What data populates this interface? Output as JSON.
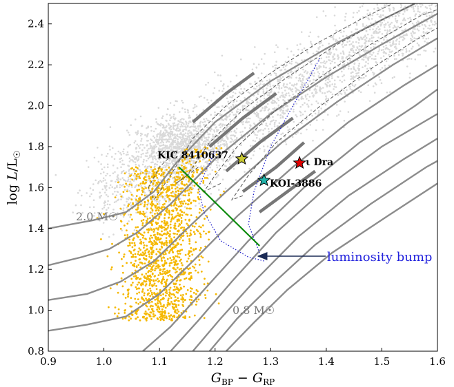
{
  "chart_data": {
    "type": "scatter",
    "xlabel": "G_BP − G_RP",
    "ylabel": "log L/L☉",
    "xlim": [
      0.9,
      1.6
    ],
    "ylim": [
      0.8,
      2.5
    ],
    "xticks": [
      "0.9",
      "1.0",
      "1.1",
      "1.2",
      "1.3",
      "1.4",
      "1.5",
      "1.6"
    ],
    "yticks": [
      "0.8",
      "1.0",
      "1.2",
      "1.4",
      "1.6",
      "1.8",
      "2.0",
      "2.2",
      "2.4"
    ],
    "grid": false,
    "colors": {
      "field_stars": "#d9d9d9",
      "rgb_stars": "#f5b800",
      "tracks": "#8c8c8c",
      "bump_line": "#0c8a0c",
      "blue_dotted": "#2222cc",
      "kic_star": "#c8c832",
      "koi_star": "#20b2aa",
      "dra_star": "#e00000"
    },
    "stars": [
      {
        "name": "KIC 8410637",
        "x": 1.248,
        "y": 1.74,
        "color": "#c8c832"
      },
      {
        "name": "KOI-3886",
        "x": 1.288,
        "y": 1.635,
        "color": "#20b2aa"
      },
      {
        "name": "ι Dra",
        "x": 1.352,
        "y": 1.72,
        "color": "#e00000"
      }
    ],
    "mass_labels": {
      "high": "2.0 M☉",
      "low": "0.8 M☉"
    },
    "annotation": {
      "text": "luminosity bump",
      "arrow_to": [
        1.275,
        1.26
      ]
    },
    "bump_segment": [
      [
        1.135,
        1.7
      ],
      [
        1.28,
        1.315
      ]
    ],
    "tracks_solid": [
      [
        [
          0.9,
          1.4
        ],
        [
          0.98,
          1.44
        ],
        [
          1.04,
          1.48
        ],
        [
          1.09,
          1.58
        ],
        [
          1.13,
          1.72
        ],
        [
          1.2,
          1.92
        ],
        [
          1.3,
          2.12
        ],
        [
          1.4,
          2.28
        ],
        [
          1.5,
          2.42
        ],
        [
          1.56,
          2.5
        ]
      ],
      [
        [
          0.9,
          1.22
        ],
        [
          0.96,
          1.26
        ],
        [
          1.01,
          1.3
        ],
        [
          1.06,
          1.38
        ],
        [
          1.12,
          1.52
        ],
        [
          1.2,
          1.74
        ],
        [
          1.3,
          1.96
        ],
        [
          1.4,
          2.14
        ],
        [
          1.5,
          2.3
        ],
        [
          1.58,
          2.42
        ],
        [
          1.6,
          2.45
        ]
      ],
      [
        [
          0.9,
          1.05
        ],
        [
          0.97,
          1.08
        ],
        [
          1.03,
          1.14
        ],
        [
          1.09,
          1.24
        ],
        [
          1.15,
          1.4
        ],
        [
          1.22,
          1.58
        ],
        [
          1.32,
          1.82
        ],
        [
          1.42,
          2.02
        ],
        [
          1.52,
          2.2
        ],
        [
          1.6,
          2.33
        ]
      ],
      [
        [
          0.9,
          0.9
        ],
        [
          0.97,
          0.93
        ],
        [
          1.04,
          0.97
        ],
        [
          1.1,
          1.08
        ],
        [
          1.16,
          1.24
        ],
        [
          1.24,
          1.46
        ],
        [
          1.34,
          1.7
        ],
        [
          1.44,
          1.92
        ],
        [
          1.54,
          2.1
        ],
        [
          1.6,
          2.2
        ]
      ],
      [
        [
          1.07,
          0.8
        ],
        [
          1.12,
          0.92
        ],
        [
          1.18,
          1.1
        ],
        [
          1.26,
          1.34
        ],
        [
          1.36,
          1.6
        ],
        [
          1.46,
          1.82
        ],
        [
          1.56,
          2.0
        ],
        [
          1.6,
          2.08
        ]
      ],
      [
        [
          1.12,
          0.8
        ],
        [
          1.17,
          0.95
        ],
        [
          1.23,
          1.14
        ],
        [
          1.31,
          1.38
        ],
        [
          1.4,
          1.6
        ],
        [
          1.5,
          1.8
        ],
        [
          1.6,
          1.96
        ]
      ],
      [
        [
          1.16,
          0.8
        ],
        [
          1.21,
          0.96
        ],
        [
          1.27,
          1.14
        ],
        [
          1.35,
          1.36
        ],
        [
          1.44,
          1.56
        ],
        [
          1.54,
          1.74
        ],
        [
          1.6,
          1.84
        ]
      ],
      [
        [
          1.19,
          0.8
        ],
        [
          1.24,
          0.96
        ],
        [
          1.3,
          1.12
        ],
        [
          1.38,
          1.32
        ],
        [
          1.48,
          1.52
        ],
        [
          1.58,
          1.7
        ],
        [
          1.6,
          1.73
        ]
      ],
      [
        [
          1.22,
          0.8
        ],
        [
          1.27,
          0.94
        ],
        [
          1.33,
          1.1
        ],
        [
          1.41,
          1.28
        ],
        [
          1.51,
          1.46
        ],
        [
          1.6,
          1.62
        ]
      ]
    ],
    "tracks_dashed": [
      [
        [
          1.13,
          1.78
        ],
        [
          1.1,
          1.7
        ],
        [
          1.08,
          1.6
        ],
        [
          1.09,
          1.54
        ],
        [
          1.12,
          1.66
        ],
        [
          1.16,
          1.84
        ],
        [
          1.22,
          2.0
        ],
        [
          1.3,
          2.16
        ],
        [
          1.38,
          2.3
        ],
        [
          1.46,
          2.42
        ],
        [
          1.52,
          2.5
        ]
      ],
      [
        [
          1.17,
          1.7
        ],
        [
          1.13,
          1.62
        ],
        [
          1.15,
          1.66
        ],
        [
          1.19,
          1.82
        ],
        [
          1.25,
          1.98
        ],
        [
          1.33,
          2.14
        ],
        [
          1.42,
          2.3
        ],
        [
          1.5,
          2.42
        ],
        [
          1.56,
          2.5
        ]
      ],
      [
        [
          1.21,
          1.62
        ],
        [
          1.18,
          1.58
        ],
        [
          1.2,
          1.66
        ],
        [
          1.24,
          1.8
        ],
        [
          1.31,
          1.98
        ],
        [
          1.4,
          2.16
        ],
        [
          1.48,
          2.3
        ],
        [
          1.57,
          2.44
        ],
        [
          1.6,
          2.47
        ]
      ],
      [
        [
          1.25,
          1.56
        ],
        [
          1.23,
          1.54
        ],
        [
          1.26,
          1.66
        ],
        [
          1.31,
          1.82
        ],
        [
          1.39,
          2.0
        ],
        [
          1.48,
          2.18
        ],
        [
          1.56,
          2.32
        ],
        [
          1.6,
          2.38
        ]
      ]
    ],
    "tracks_thick_segments": [
      [
        [
          1.16,
          1.92
        ],
        [
          1.22,
          2.06
        ],
        [
          1.27,
          2.16
        ]
      ],
      [
        [
          1.19,
          1.8
        ],
        [
          1.25,
          1.94
        ],
        [
          1.31,
          2.06
        ]
      ],
      [
        [
          1.22,
          1.68
        ],
        [
          1.28,
          1.82
        ],
        [
          1.34,
          1.94
        ]
      ],
      [
        [
          1.25,
          1.58
        ],
        [
          1.31,
          1.7
        ],
        [
          1.36,
          1.82
        ]
      ],
      [
        [
          1.28,
          1.48
        ],
        [
          1.33,
          1.58
        ],
        [
          1.38,
          1.68
        ]
      ]
    ],
    "blue_dotted_curves": [
      [
        [
          1.2,
          1.78
        ],
        [
          1.17,
          1.6
        ],
        [
          1.18,
          1.48
        ],
        [
          1.21,
          1.34
        ],
        [
          1.26,
          1.26
        ],
        [
          1.29,
          1.24
        ]
      ],
      [
        [
          1.28,
          1.28
        ],
        [
          1.26,
          1.42
        ],
        [
          1.27,
          1.58
        ],
        [
          1.3,
          1.8
        ],
        [
          1.34,
          2.0
        ],
        [
          1.37,
          2.14
        ],
        [
          1.39,
          2.24
        ]
      ]
    ]
  }
}
